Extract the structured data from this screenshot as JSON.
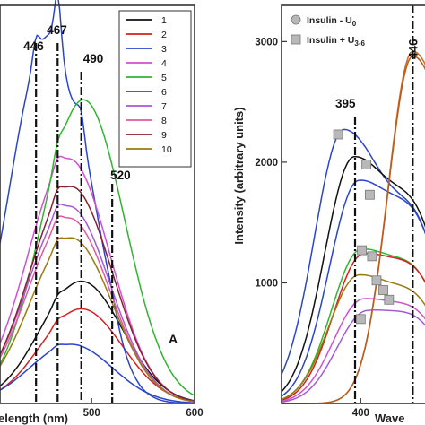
{
  "chart_data": [
    {
      "type": "line",
      "panel_label": "A",
      "xlabel": "Wavelength (nm)",
      "xlabel_visible": "elength (nm)",
      "x_ticks": [
        500,
        600
      ],
      "x_tick_labels": [
        "500",
        "600"
      ],
      "x_range_visible": [
        410,
        600
      ],
      "y_range": [
        0,
        1
      ],
      "annotations": [
        {
          "text": "446",
          "x": 446
        },
        {
          "text": "467",
          "x": 467
        },
        {
          "text": "490",
          "x": 490
        },
        {
          "text": "520",
          "x": 520
        }
      ],
      "legend_position": "top-right",
      "series": [
        {
          "name": "1",
          "color": "#111111",
          "peak_x": 490,
          "peak": 0.31
        },
        {
          "name": "2",
          "color": "#d42020",
          "peak_x": 490,
          "peak": 0.24
        },
        {
          "name": "3",
          "color": "#2a45c8",
          "peak_x": 467,
          "peak": 1.0
        },
        {
          "name": "4",
          "color": "#d24fd2",
          "peak_x": 478,
          "peak": 0.62
        },
        {
          "name": "5",
          "color": "#2fb52f",
          "peak_x": 492,
          "peak": 0.77
        },
        {
          "name": "6",
          "color": "#2a45c8",
          "peak_x": 480,
          "peak": 0.15
        },
        {
          "name": "7",
          "color": "#a45ad6",
          "peak_x": 478,
          "peak": 0.5
        },
        {
          "name": "8",
          "color": "#e05aa0",
          "peak_x": 478,
          "peak": 0.47
        },
        {
          "name": "9",
          "color": "#8a1f2f",
          "peak_x": 480,
          "peak": 0.55
        },
        {
          "name": "10",
          "color": "#9a7a10",
          "peak_x": 480,
          "peak": 0.42
        }
      ]
    },
    {
      "type": "line",
      "ylabel": "Intensity (arbitrary units)",
      "xlabel": "Wavelength (nm)",
      "xlabel_visible": "Wave",
      "x_ticks": [
        400
      ],
      "x_tick_labels": [
        "400"
      ],
      "x_range_visible": [
        330,
        460
      ],
      "y_ticks": [
        1000,
        2000,
        3000
      ],
      "y_tick_labels": [
        "1000",
        "2000",
        "3000"
      ],
      "ylim": [
        0,
        3300
      ],
      "annotations": [
        {
          "text": "395",
          "x": 395
        },
        {
          "text": "446",
          "x": 446
        }
      ],
      "legend": [
        {
          "label_main": "Insulin - U",
          "label_sub": "0",
          "marker": "circle",
          "color": "#b8b8b8"
        },
        {
          "label_main": "Insulin + U",
          "label_sub": "3-6",
          "marker": "square",
          "color": "#b8b8b8"
        }
      ],
      "legend_position": "top-left",
      "series": [
        {
          "color": "#2a45c8",
          "center": 385,
          "peak": 2270
        },
        {
          "color": "#111111",
          "center": 394,
          "peak": 2040
        },
        {
          "color": "#2a45c8",
          "center": 398,
          "peak": 1840
        },
        {
          "color": "#2fb52f",
          "center": 400,
          "peak": 1270
        },
        {
          "color": "#d42020",
          "center": 402,
          "peak": 1230
        },
        {
          "color": "#9a7a10",
          "center": 398,
          "peak": 1060
        },
        {
          "color": "#d24fd2",
          "center": 402,
          "peak": 860
        },
        {
          "color": "#a45ad6",
          "center": 405,
          "peak": 760
        },
        {
          "color": "#d2691e",
          "center": 446,
          "peak": 2920
        },
        {
          "color": "#b85c1e",
          "center": 446,
          "peak": 2880
        }
      ],
      "square_markers": [
        {
          "x": 380,
          "y": 2230
        },
        {
          "x": 405,
          "y": 1980
        },
        {
          "x": 408,
          "y": 1730
        },
        {
          "x": 401,
          "y": 1270
        },
        {
          "x": 410,
          "y": 1220
        },
        {
          "x": 414,
          "y": 1020
        },
        {
          "x": 420,
          "y": 940
        },
        {
          "x": 425,
          "y": 860
        },
        {
          "x": 400,
          "y": 700
        }
      ]
    }
  ]
}
